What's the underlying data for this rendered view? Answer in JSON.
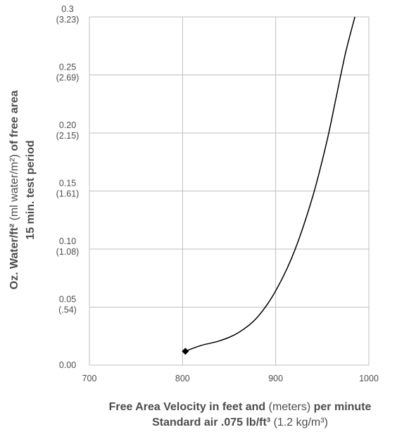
{
  "chart_data": {
    "type": "line",
    "xlim": [
      700,
      1000
    ],
    "ylim": [
      0.0,
      0.3
    ],
    "grid": true,
    "x_ticks": [
      {
        "value": 700,
        "label": "700"
      },
      {
        "value": 800,
        "label": "800"
      },
      {
        "value": 900,
        "label": "900"
      },
      {
        "value": 1000,
        "label": "1000"
      }
    ],
    "y_ticks": [
      {
        "value": 0.0,
        "label": "0.00",
        "sublabel": ""
      },
      {
        "value": 0.05,
        "label": "0.05",
        "sublabel": "(.54)"
      },
      {
        "value": 0.1,
        "label": "0.10",
        "sublabel": "(1.08)"
      },
      {
        "value": 0.15,
        "label": "0.15",
        "sublabel": "(1.61)"
      },
      {
        "value": 0.2,
        "label": "0.20",
        "sublabel": "(2.15)"
      },
      {
        "value": 0.25,
        "label": "0.25",
        "sublabel": "(2.69)"
      },
      {
        "value": 0.3,
        "label": "0.3",
        "sublabel": "(3.23)"
      }
    ],
    "series": [
      {
        "x": [
          803,
          820,
          840,
          860,
          880,
          900,
          920,
          940,
          955,
          965,
          975,
          985
        ],
        "y": [
          0.012,
          0.017,
          0.021,
          0.028,
          0.041,
          0.064,
          0.098,
          0.146,
          0.193,
          0.231,
          0.269,
          0.3
        ],
        "marker_first": true
      }
    ],
    "xlabel": {
      "line1_bold_a": "Free Area Velocity in feet and",
      "line1_light": " (meters) ",
      "line1_bold_b": "per minute",
      "line2_bold": "Standard air .075 lb/ft³",
      "line2_light": " (1.2 kg/m³)"
    },
    "ylabel": {
      "line1_bold_a": "Oz. Water/ft²",
      "line1_light": " (ml water/m²) ",
      "line1_bold_b": "of free area",
      "line2_bold": "15 min. test period"
    },
    "colors": {
      "grid": "#bfbfbf",
      "line": "#000000",
      "text": "#4d4d4d"
    }
  }
}
